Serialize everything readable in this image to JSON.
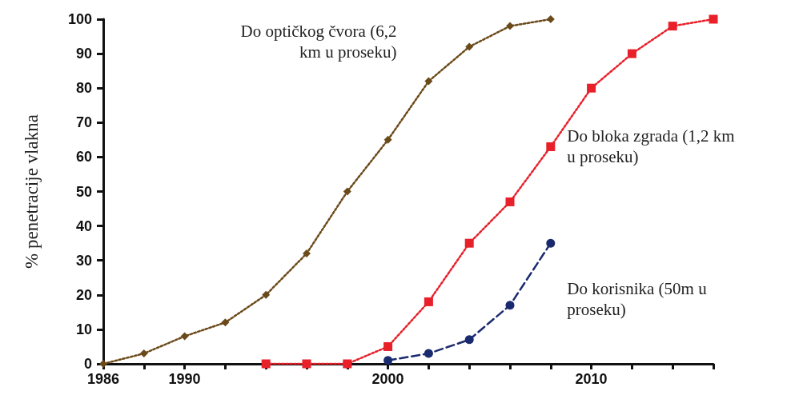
{
  "chart_data": {
    "type": "line",
    "ylabel": "% penetracije vlakna",
    "xlim": [
      1986,
      2016
    ],
    "xticks": [
      1986,
      {
        "value": 1988,
        "label": null
      },
      1990,
      {
        "value": 1992,
        "label": null
      },
      {
        "value": 1994,
        "label": null
      },
      {
        "value": 1996,
        "label": null
      },
      {
        "value": 1998,
        "label": null
      },
      2000,
      {
        "value": 2002,
        "label": null
      },
      {
        "value": 2004,
        "label": null
      },
      {
        "value": 2006,
        "label": null
      },
      {
        "value": 2008,
        "label": null
      },
      2010,
      {
        "value": 2012,
        "label": null
      },
      {
        "value": 2014,
        "label": null
      },
      {
        "value": 2016,
        "label": null
      }
    ],
    "ylim": [
      0,
      100
    ],
    "yticks": [
      0,
      10,
      20,
      30,
      40,
      50,
      60,
      70,
      80,
      90,
      100
    ],
    "grid": false,
    "legend": false,
    "series": [
      {
        "name": "Do optičkog čvora (6,2 km u proseku)",
        "color": "#6b4a1a",
        "marker": "diamond",
        "line_style": "dotted",
        "x": [
          1986,
          1988,
          1990,
          1992,
          1994,
          1996,
          1998,
          2000,
          2002,
          2004,
          2006,
          2008
        ],
        "values": [
          0,
          3,
          8,
          12,
          20,
          32,
          50,
          65,
          82,
          92,
          98,
          100
        ]
      },
      {
        "name": "Do bloka zgrada (1,2 km u proseku)",
        "color": "#e8202a",
        "marker": "square",
        "line_style": "dotted",
        "x": [
          1994,
          1996,
          1998,
          2000,
          2002,
          2004,
          2006,
          2008,
          2010,
          2012,
          2014,
          2016
        ],
        "values": [
          0,
          0,
          0,
          5,
          18,
          35,
          47,
          63,
          80,
          90,
          98,
          100
        ]
      },
      {
        "name": "Do korisnika (50m u proseku)",
        "color": "#1a2a6e",
        "marker": "circle",
        "line_style": "dashed",
        "x": [
          2000,
          2002,
          2004,
          2006,
          2008
        ],
        "values": [
          1,
          3,
          7,
          17,
          35
        ]
      }
    ]
  }
}
